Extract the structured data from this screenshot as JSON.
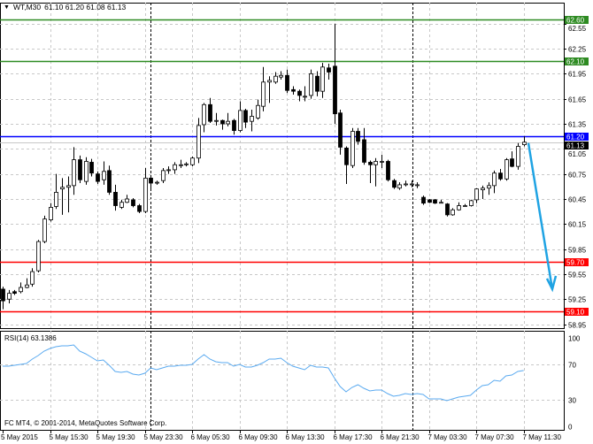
{
  "header": {
    "symbol_timeframe": "WT,M30",
    "ohlc": "61.10 61.20 61.08 61.13",
    "menu_icon": "triangle-down-icon"
  },
  "rsi": {
    "label": "RSI(14) 63.1386",
    "levels": [
      "100",
      "70",
      "30",
      "0"
    ],
    "line_color": "#5aaaf0"
  },
  "copyright": "FC MT4, © 2001-2014, MetaQuotes Software Corp.",
  "chart_data": {
    "type": "candlestick",
    "ylim": [
      58.91,
      62.75
    ],
    "price_ticks": [
      "62.55",
      "62.25",
      "61.95",
      "61.65",
      "61.35",
      "61.05",
      "60.75",
      "60.45",
      "60.15",
      "59.85",
      "59.55",
      "59.25",
      "58.95"
    ],
    "time_labels": [
      "5 May 2015",
      "5 May 15:30",
      "5 May 19:30",
      "5 May 23:30",
      "6 May 05:30",
      "6 May 09:30",
      "6 May 13:30",
      "6 May 17:30",
      "6 May 21:30",
      "7 May 03:30",
      "7 May 07:30",
      "7 May 11:30"
    ],
    "grid": true,
    "candles": [
      [
        59.37,
        59.4,
        59.13,
        59.23
      ],
      [
        59.25,
        59.36,
        59.2,
        59.32
      ],
      [
        59.34,
        59.36,
        59.3,
        59.32
      ],
      [
        59.34,
        59.45,
        59.32,
        59.39
      ],
      [
        59.39,
        59.5,
        59.38,
        59.42
      ],
      [
        59.43,
        59.62,
        59.4,
        59.58
      ],
      [
        59.59,
        59.96,
        59.57,
        59.94
      ],
      [
        59.94,
        60.25,
        59.92,
        60.21
      ],
      [
        60.2,
        60.4,
        60.18,
        60.35
      ],
      [
        60.36,
        60.75,
        60.33,
        60.53
      ],
      [
        60.57,
        60.7,
        60.26,
        60.59
      ],
      [
        60.59,
        60.72,
        60.29,
        60.61
      ],
      [
        60.61,
        61.07,
        60.5,
        60.92
      ],
      [
        60.92,
        60.97,
        60.64,
        60.68
      ],
      [
        60.66,
        60.95,
        60.62,
        60.9
      ],
      [
        60.89,
        60.93,
        60.72,
        60.76
      ],
      [
        60.75,
        60.78,
        60.63,
        60.66
      ],
      [
        60.68,
        60.9,
        60.62,
        60.78
      ],
      [
        60.79,
        60.85,
        60.5,
        60.53
      ],
      [
        60.53,
        60.62,
        60.31,
        60.37
      ],
      [
        60.35,
        60.44,
        60.33,
        60.41
      ],
      [
        60.41,
        60.5,
        60.4,
        60.45
      ],
      [
        60.44,
        60.46,
        60.35,
        60.37
      ],
      [
        60.37,
        60.39,
        60.28,
        60.3
      ],
      [
        60.3,
        60.82,
        60.28,
        60.7
      ],
      [
        60.7,
        60.73,
        60.55,
        60.64
      ],
      [
        60.65,
        60.67,
        60.62,
        60.65
      ],
      [
        60.67,
        60.82,
        60.64,
        60.79
      ],
      [
        60.79,
        60.84,
        60.75,
        60.8
      ],
      [
        60.8,
        60.89,
        60.75,
        60.86
      ],
      [
        60.86,
        60.92,
        60.82,
        60.86
      ],
      [
        60.86,
        60.89,
        60.84,
        60.87
      ],
      [
        60.86,
        60.96,
        60.84,
        60.94
      ],
      [
        60.94,
        61.42,
        60.88,
        61.33
      ],
      [
        61.34,
        61.6,
        61.25,
        61.58
      ],
      [
        61.58,
        61.66,
        61.36,
        61.38
      ],
      [
        61.39,
        61.48,
        61.33,
        61.39
      ],
      [
        61.39,
        61.4,
        61.28,
        61.35
      ],
      [
        61.35,
        61.48,
        61.32,
        61.38
      ],
      [
        61.39,
        61.41,
        61.22,
        61.27
      ],
      [
        61.27,
        61.62,
        61.25,
        61.51
      ],
      [
        61.51,
        61.53,
        61.3,
        61.37
      ],
      [
        61.38,
        61.52,
        61.26,
        61.44
      ],
      [
        61.42,
        61.64,
        61.4,
        61.57
      ],
      [
        61.56,
        62.03,
        61.5,
        61.85
      ],
      [
        61.85,
        61.92,
        61.6,
        61.87
      ],
      [
        61.85,
        61.97,
        61.83,
        61.92
      ],
      [
        61.91,
        61.98,
        61.88,
        61.93
      ],
      [
        61.93,
        62.0,
        61.72,
        61.75
      ],
      [
        61.76,
        61.8,
        61.7,
        61.74
      ],
      [
        61.74,
        61.76,
        61.62,
        61.69
      ],
      [
        61.68,
        61.8,
        61.62,
        61.68
      ],
      [
        61.69,
        62.0,
        61.65,
        61.95
      ],
      [
        61.92,
        61.98,
        61.68,
        61.74
      ],
      [
        61.74,
        62.08,
        61.66,
        62.03
      ],
      [
        62.02,
        62.07,
        61.88,
        61.97
      ],
      [
        62.04,
        62.55,
        61.35,
        61.47
      ],
      [
        61.48,
        61.52,
        60.98,
        61.07
      ],
      [
        61.06,
        61.08,
        60.63,
        60.86
      ],
      [
        60.85,
        61.3,
        60.82,
        61.26
      ],
      [
        61.26,
        61.3,
        61.1,
        61.14
      ],
      [
        61.16,
        61.3,
        60.86,
        60.89
      ],
      [
        60.89,
        60.91,
        60.64,
        60.86
      ],
      [
        60.86,
        60.94,
        60.6,
        60.9
      ],
      [
        60.9,
        60.98,
        60.82,
        60.9
      ],
      [
        60.9,
        60.92,
        60.66,
        60.68
      ],
      [
        60.67,
        60.69,
        60.57,
        60.59
      ],
      [
        60.58,
        60.65,
        60.56,
        60.62
      ],
      [
        60.63,
        60.67,
        60.6,
        60.63
      ],
      [
        60.63,
        60.67,
        60.59,
        60.63
      ],
      [
        60.62,
        60.65,
        60.58,
        60.62
      ],
      [
        60.47,
        60.49,
        60.38,
        60.4
      ],
      [
        60.44,
        60.45,
        60.4,
        60.41
      ],
      [
        60.44,
        60.45,
        60.39,
        60.4
      ],
      [
        60.41,
        60.44,
        60.4,
        60.41
      ],
      [
        60.39,
        60.4,
        60.24,
        60.26
      ],
      [
        60.26,
        60.34,
        60.25,
        60.32
      ],
      [
        60.32,
        60.41,
        60.31,
        60.37
      ],
      [
        60.37,
        60.39,
        60.36,
        60.37
      ],
      [
        60.37,
        60.44,
        60.36,
        60.43
      ],
      [
        60.44,
        60.58,
        60.4,
        60.57
      ],
      [
        60.56,
        60.61,
        60.45,
        60.58
      ],
      [
        60.58,
        60.65,
        60.5,
        60.61
      ],
      [
        60.61,
        60.79,
        60.52,
        60.76
      ],
      [
        60.76,
        60.81,
        60.67,
        60.69
      ],
      [
        60.69,
        60.94,
        60.67,
        60.92
      ],
      [
        60.93,
        61.02,
        60.83,
        60.84
      ],
      [
        60.84,
        61.12,
        60.8,
        61.08
      ],
      [
        61.1,
        61.2,
        61.08,
        61.13
      ]
    ],
    "horizontal_lines": [
      {
        "price": "62.60",
        "color": "#2e8b22"
      },
      {
        "price": "62.10",
        "color": "#2e8b22"
      },
      {
        "price": "61.20",
        "color": "#0000ff"
      },
      {
        "price": "59.70",
        "color": "#ff0000"
      },
      {
        "price": "59.10",
        "color": "#ff0000"
      }
    ],
    "current_price": {
      "price": "61.13",
      "color": "#000000"
    },
    "arrow": {
      "from_price": 61.12,
      "to_price": 59.37,
      "color": "#1fa3e3"
    },
    "rsi_values": [
      68,
      68,
      69,
      70,
      71,
      76,
      80,
      85,
      88,
      90,
      91,
      91,
      92,
      85,
      82,
      78,
      74,
      75,
      69,
      62,
      61,
      62,
      59,
      58,
      60,
      66,
      64,
      66,
      68,
      68,
      69,
      69,
      70,
      76,
      81,
      76,
      73,
      72,
      72,
      68,
      70,
      67,
      67,
      69,
      72,
      76,
      76,
      77,
      72,
      68,
      66,
      64,
      69,
      67,
      67,
      66,
      55,
      45,
      39,
      44,
      47,
      43,
      40,
      41,
      41,
      37,
      34,
      35,
      37,
      36,
      37,
      36,
      31,
      31,
      31,
      29,
      31,
      33,
      34,
      35,
      41,
      46,
      47,
      52,
      51,
      57,
      58,
      62,
      63.14
    ],
    "rsi_ylim": [
      0,
      100
    ]
  }
}
